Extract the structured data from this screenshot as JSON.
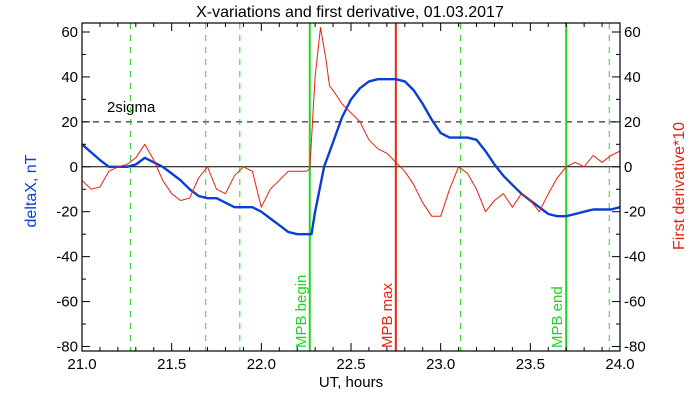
{
  "chart_data": {
    "type": "line",
    "title": "X-variations and first derivative, 01.03.2017",
    "xlabel": "UT, hours",
    "ylabel": "deltaX, nT",
    "ylabel_right": "First derivative*10",
    "xlim": [
      21.0,
      24.0
    ],
    "ylim": [
      -82,
      64
    ],
    "xticks": [
      "21.0",
      "21.5",
      "22.0",
      "22.5",
      "23.0",
      "23.5",
      "24.0"
    ],
    "yticks": [
      "60",
      "40",
      "20",
      "0",
      "-20",
      "-40",
      "-60",
      "-80"
    ],
    "sigma_label": "2sigma",
    "sigma_level": 20,
    "zero_level": 0,
    "colors": {
      "deltax": "#0a3fd6",
      "derivative": "#e8200e",
      "markers": "#22d422",
      "max_marker": "#ee2211",
      "axes": "#000000"
    },
    "series": [
      {
        "name": "deltaX, nT",
        "x": [
          21.0,
          21.1,
          21.15,
          21.2,
          21.25,
          21.3,
          21.35,
          21.4,
          21.45,
          21.5,
          21.55,
          21.6,
          21.65,
          21.7,
          21.75,
          21.8,
          21.85,
          21.9,
          21.95,
          22.0,
          22.05,
          22.1,
          22.15,
          22.2,
          22.25,
          22.28,
          22.3,
          22.35,
          22.4,
          22.45,
          22.5,
          22.55,
          22.6,
          22.65,
          22.7,
          22.75,
          22.8,
          22.85,
          22.9,
          22.95,
          23.0,
          23.05,
          23.1,
          23.15,
          23.2,
          23.25,
          23.3,
          23.35,
          23.4,
          23.45,
          23.5,
          23.55,
          23.6,
          23.65,
          23.7,
          23.75,
          23.8,
          23.85,
          23.9,
          23.95,
          24.0
        ],
        "values": [
          10,
          3,
          0,
          0,
          0,
          1,
          4,
          2,
          0,
          -3,
          -6,
          -10,
          -13,
          -14,
          -14,
          -16,
          -18,
          -18,
          -18,
          -20,
          -23,
          -26,
          -29,
          -30,
          -30,
          -30,
          -20,
          0,
          11,
          22,
          30,
          35,
          38,
          39,
          39,
          39,
          38,
          34,
          28,
          21,
          15,
          13,
          13,
          13,
          12,
          7,
          1,
          -4,
          -8,
          -12,
          -15,
          -18,
          -21,
          -22,
          -22,
          -21,
          -20,
          -19,
          -19,
          -19,
          -18
        ]
      },
      {
        "name": "First derivative*10",
        "x": [
          21.0,
          21.05,
          21.1,
          21.15,
          21.2,
          21.25,
          21.3,
          21.35,
          21.4,
          21.45,
          21.5,
          21.55,
          21.6,
          21.65,
          21.7,
          21.75,
          21.8,
          21.85,
          21.9,
          21.95,
          22.0,
          22.05,
          22.1,
          22.15,
          22.2,
          22.25,
          22.27,
          22.3,
          22.33,
          22.36,
          22.38,
          22.4,
          22.45,
          22.5,
          22.55,
          22.6,
          22.65,
          22.7,
          22.75,
          22.8,
          22.85,
          22.9,
          22.95,
          23.0,
          23.05,
          23.1,
          23.15,
          23.2,
          23.25,
          23.3,
          23.35,
          23.4,
          23.45,
          23.5,
          23.55,
          23.6,
          23.65,
          23.7,
          23.75,
          23.8,
          23.85,
          23.9,
          23.95,
          24.0
        ],
        "values": [
          -6,
          -10,
          -9,
          -2,
          0,
          1,
          4,
          10,
          3,
          -6,
          -12,
          -15,
          -14,
          -5,
          0,
          -10,
          -12,
          -4,
          0,
          -2,
          -18,
          -10,
          -6,
          -2,
          -2,
          -2,
          -1,
          40,
          62,
          48,
          36,
          34,
          28,
          24,
          20,
          12,
          8,
          6,
          2,
          -2,
          -8,
          -16,
          -22,
          -22,
          -10,
          0,
          -3,
          -10,
          -20,
          -15,
          -12,
          -18,
          -12,
          -15,
          -20,
          -12,
          -5,
          0,
          2,
          0,
          5,
          2,
          5,
          7
        ]
      }
    ],
    "markers": [
      {
        "x": 21.27,
        "style": "dashed",
        "color": "green",
        "label": ""
      },
      {
        "x": 21.69,
        "style": "dashed",
        "color": "green",
        "label": ""
      },
      {
        "x": 21.88,
        "style": "dashed",
        "color": "green",
        "label": ""
      },
      {
        "x": 22.27,
        "style": "solid",
        "color": "green",
        "label": "MPB begin"
      },
      {
        "x": 22.75,
        "style": "solid",
        "color": "red",
        "label": "MPB max"
      },
      {
        "x": 23.11,
        "style": "dashed",
        "color": "green",
        "label": ""
      },
      {
        "x": 23.7,
        "style": "solid",
        "color": "green",
        "label": "MPB end"
      },
      {
        "x": 23.94,
        "style": "dashed",
        "color": "green",
        "label": ""
      }
    ]
  }
}
